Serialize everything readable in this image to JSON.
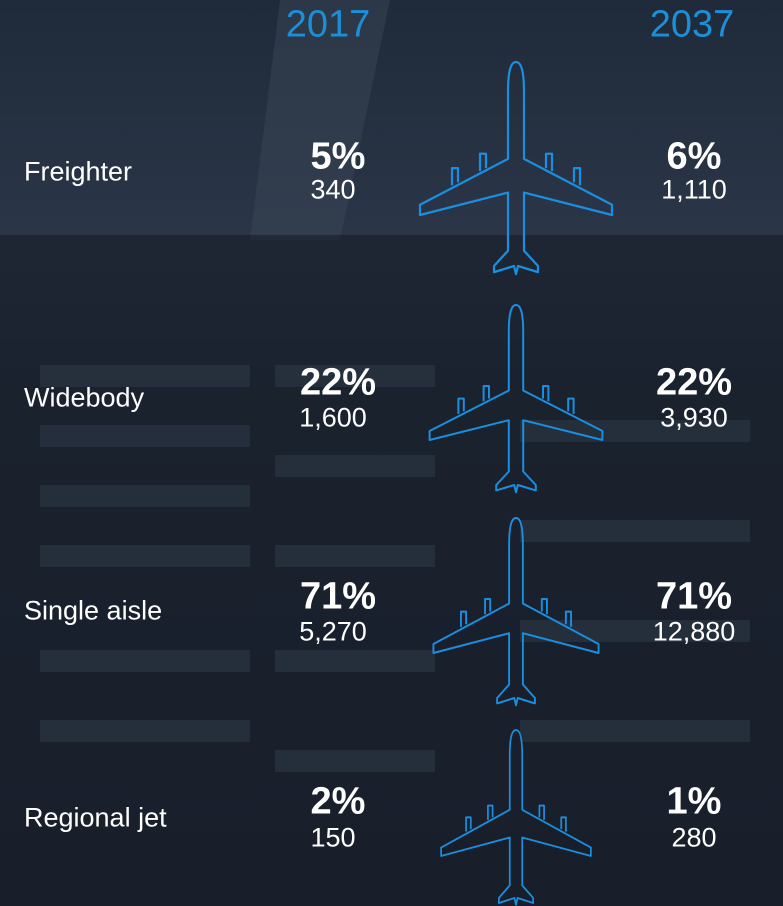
{
  "header": {
    "year_from": "2017",
    "year_to": "2037"
  },
  "rows": [
    {
      "label": "Freighter",
      "share_from": "5%",
      "count_from": "340",
      "share_to": "6%",
      "count_to": "1,110"
    },
    {
      "label": "Widebody",
      "share_from": "22%",
      "count_from": "1,600",
      "share_to": "22%",
      "count_to": "3,930"
    },
    {
      "label": "Single aisle",
      "share_from": "71%",
      "count_from": "5,270",
      "share_to": "71%",
      "count_to": "12,880"
    },
    {
      "label": "Regional jet",
      "share_from": "2%",
      "count_from": "150",
      "share_to": "1%",
      "count_to": "280"
    }
  ]
}
